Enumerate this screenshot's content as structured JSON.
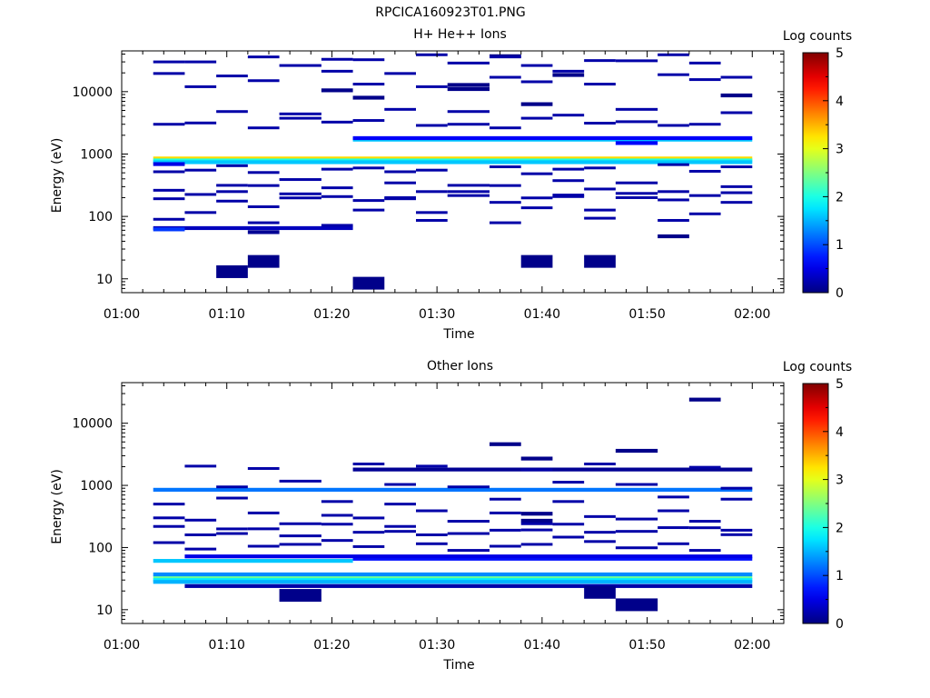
{
  "page": {
    "title": "RPCICA160923T01.PNG"
  },
  "colorbar": {
    "colormap": "jet",
    "tick_labels": [
      "0",
      "1",
      "2",
      "3",
      "4",
      "5"
    ]
  },
  "chart_data": [
    {
      "type": "heatmap",
      "title": "H+ He++ Ions",
      "xlabel": "Time",
      "ylabel": "Energy (eV)",
      "y_scale": "log",
      "xlim": [
        "01:00",
        "02:03"
      ],
      "ylim": [
        6,
        45000
      ],
      "x_tick_labels": [
        "01:00",
        "01:10",
        "01:20",
        "01:30",
        "01:40",
        "01:50",
        "02:00"
      ],
      "y_tick_labels": [
        "10",
        "100",
        "1000",
        "10000"
      ],
      "colorbar_label": "Log counts",
      "colorbar_range": [
        0,
        5
      ],
      "time_bins": [
        "01:03",
        "01:06",
        "01:09",
        "01:12",
        "01:15",
        "01:19",
        "01:22",
        "01:25",
        "01:28",
        "01:31",
        "01:35",
        "01:38",
        "01:41",
        "01:44",
        "01:47",
        "01:51",
        "01:54",
        "01:57",
        "02:00"
      ],
      "cells": [
        {
          "t0": "01:03",
          "t1": "02:00",
          "e": 850,
          "v": 3.3
        },
        {
          "t0": "01:03",
          "t1": "02:00",
          "e": 790,
          "v": 2.0
        },
        {
          "t0": "01:03",
          "t1": "02:00",
          "e": 740,
          "v": 1.6
        },
        {
          "t0": "01:03",
          "t1": "01:06",
          "e": 690,
          "v": 0.5
        },
        {
          "t0": "01:22",
          "t1": "02:00",
          "e": 1700,
          "v": 1.6
        },
        {
          "t0": "01:22",
          "t1": "02:00",
          "e": 1800,
          "v": 0.6
        },
        {
          "t0": "01:03",
          "t1": "01:22",
          "e": 65,
          "v": 0.3
        },
        {
          "t0": "01:03",
          "t1": "01:06",
          "e": 62,
          "v": 0.9
        },
        {
          "t0": "01:09",
          "t1": "01:12",
          "e": 13,
          "v": 0.05
        },
        {
          "t0": "01:12",
          "t1": "01:15",
          "e": 19,
          "v": 0.05
        },
        {
          "t0": "01:12",
          "t1": "01:15",
          "e": 56,
          "v": 0.1
        },
        {
          "t0": "01:22",
          "t1": "01:25",
          "e": 8.5,
          "v": 0.05
        },
        {
          "t0": "01:22",
          "t1": "01:25",
          "e": 8000,
          "v": 0.05
        },
        {
          "t0": "01:19",
          "t1": "01:22",
          "e": 10500,
          "v": 0.05
        },
        {
          "t0": "01:38",
          "t1": "01:41",
          "e": 19,
          "v": 0.05
        },
        {
          "t0": "01:44",
          "t1": "01:47",
          "e": 19,
          "v": 0.05
        },
        {
          "t0": "01:57",
          "t1": "02:00",
          "e": 8700,
          "v": 0.05
        },
        {
          "t0": "01:41",
          "t1": "01:44",
          "e": 18500,
          "v": 0.05
        },
        {
          "t0": "01:35",
          "t1": "01:38",
          "e": 37000,
          "v": 0.05
        },
        {
          "t0": "01:31",
          "t1": "01:35",
          "e": 12800,
          "v": 0.05
        },
        {
          "t0": "01:31",
          "t1": "01:35",
          "e": 11000,
          "v": 0.05
        },
        {
          "t0": "01:38",
          "t1": "01:41",
          "e": 6300,
          "v": 0.05
        },
        {
          "t0": "01:47",
          "t1": "01:51",
          "e": 1500,
          "v": 0.6
        },
        {
          "t0": "01:51",
          "t1": "01:54",
          "e": 48,
          "v": 0.05
        }
      ]
    },
    {
      "type": "heatmap",
      "title": "Other Ions",
      "xlabel": "Time",
      "ylabel": "Energy (eV)",
      "y_scale": "log",
      "xlim": [
        "01:00",
        "02:03"
      ],
      "ylim": [
        6,
        45000
      ],
      "x_tick_labels": [
        "01:00",
        "01:10",
        "01:20",
        "01:30",
        "01:40",
        "01:50",
        "02:00"
      ],
      "y_tick_labels": [
        "10",
        "100",
        "1000",
        "10000"
      ],
      "colorbar_label": "Log counts",
      "colorbar_range": [
        0,
        5
      ],
      "time_bins": [
        "01:03",
        "01:06",
        "01:09",
        "01:12",
        "01:15",
        "01:19",
        "01:22",
        "01:25",
        "01:28",
        "01:31",
        "01:35",
        "01:38",
        "01:41",
        "01:44",
        "01:47",
        "01:51",
        "01:54",
        "01:57",
        "02:00"
      ],
      "cells": [
        {
          "t0": "01:03",
          "t1": "02:00",
          "e": 850,
          "v": 1.2
        },
        {
          "t0": "01:03",
          "t1": "02:00",
          "e": 33,
          "v": 2.4
        },
        {
          "t0": "01:03",
          "t1": "02:00",
          "e": 30,
          "v": 1.8
        },
        {
          "t0": "01:03",
          "t1": "02:00",
          "e": 37,
          "v": 1.3
        },
        {
          "t0": "01:03",
          "t1": "02:00",
          "e": 28,
          "v": 1.5
        },
        {
          "t0": "01:03",
          "t1": "01:22",
          "e": 61,
          "v": 1.6
        },
        {
          "t0": "01:22",
          "t1": "02:00",
          "e": 66,
          "v": 0.7
        },
        {
          "t0": "01:06",
          "t1": "02:00",
          "e": 72,
          "v": 0.5
        },
        {
          "t0": "01:06",
          "t1": "02:00",
          "e": 24,
          "v": 0.2
        },
        {
          "t0": "01:15",
          "t1": "01:19",
          "e": 17,
          "v": 0.05
        },
        {
          "t0": "01:47",
          "t1": "01:51",
          "e": 12,
          "v": 0.05
        },
        {
          "t0": "01:44",
          "t1": "01:47",
          "e": 19,
          "v": 0.05
        },
        {
          "t0": "01:54",
          "t1": "01:57",
          "e": 24000,
          "v": 0.05
        },
        {
          "t0": "01:35",
          "t1": "01:38",
          "e": 4600,
          "v": 0.05
        },
        {
          "t0": "01:47",
          "t1": "01:51",
          "e": 3600,
          "v": 0.05
        },
        {
          "t0": "01:38",
          "t1": "01:41",
          "e": 2700,
          "v": 0.05
        },
        {
          "t0": "01:22",
          "t1": "02:00",
          "e": 1800,
          "v": 0.1
        },
        {
          "t0": "01:38",
          "t1": "01:41",
          "e": 350,
          "v": 0.05
        },
        {
          "t0": "01:38",
          "t1": "01:41",
          "e": 270,
          "v": 0.05
        }
      ]
    }
  ]
}
